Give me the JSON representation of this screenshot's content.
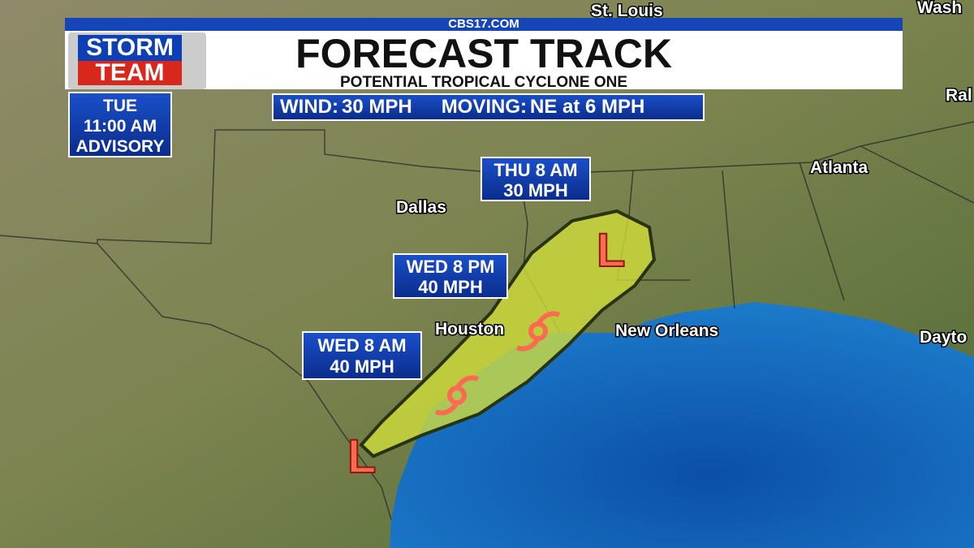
{
  "header": {
    "site": "CBS17.COM",
    "title": "FORECAST TRACK",
    "subtitle": "POTENTIAL TROPICAL CYCLONE ONE"
  },
  "logo": {
    "line1": "STORM",
    "line2": "TEAM"
  },
  "advisory": {
    "lines": [
      "TUE",
      "11:00 AM",
      "ADVISORY"
    ]
  },
  "stats": {
    "wind_label": "WIND:",
    "wind_value": "30 MPH",
    "moving_label": "MOVING:",
    "moving_value": "NE at 6 MPH"
  },
  "forecast_points": [
    {
      "time": "THU 8 AM",
      "wind": "30 MPH"
    },
    {
      "time": "WED 8 PM",
      "wind": "40 MPH"
    },
    {
      "time": "WED 8 AM",
      "wind": "40 MPH"
    }
  ],
  "cities": [
    "St. Louis",
    "Wash",
    "Ral",
    "Atlanta",
    "Dallas",
    "Houston",
    "New Orleans",
    "Dayto"
  ]
}
